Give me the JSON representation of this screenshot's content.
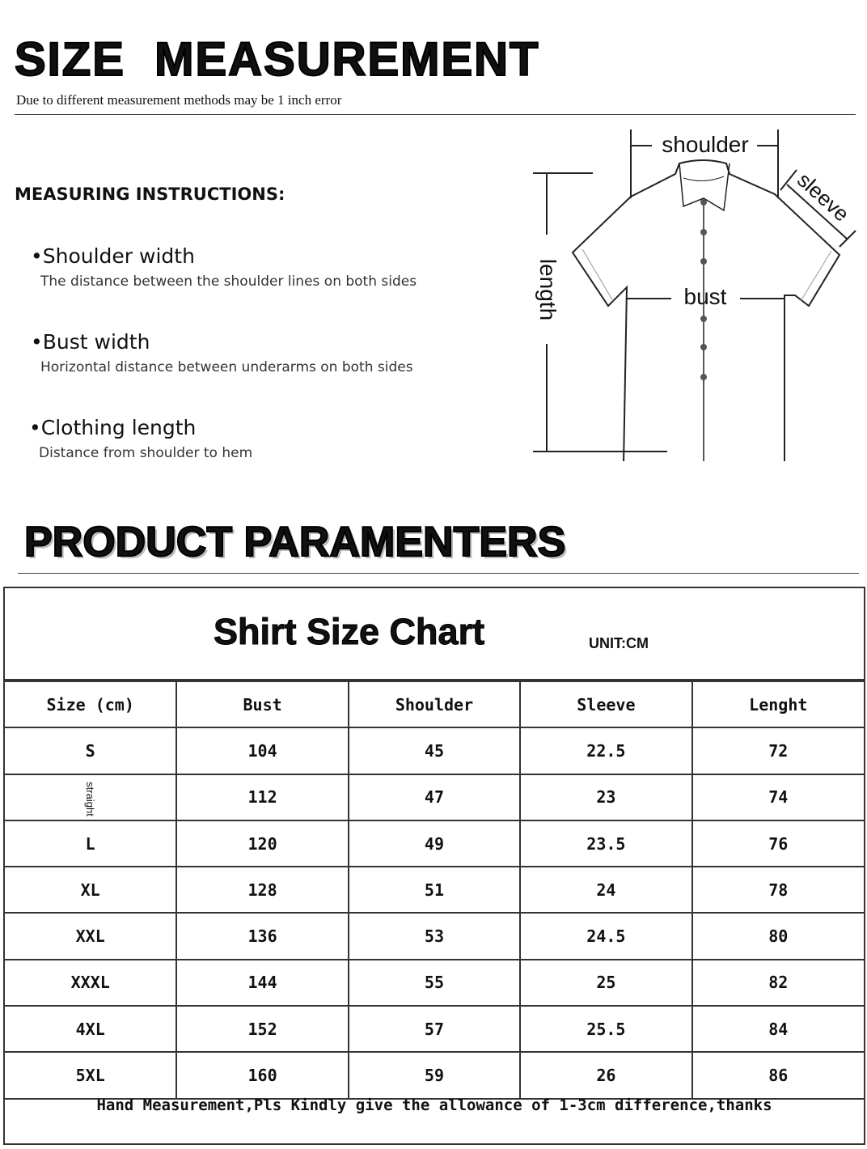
{
  "header": {
    "title": "SIZE  MEASUREMENT",
    "subtitle": "Due to different measurement methods may be 1 inch error"
  },
  "instructions": {
    "heading": "MEASURING INSTRUCTIONS:",
    "items": [
      {
        "title": "•Shoulder width",
        "desc": "The distance between the shoulder lines on both sides"
      },
      {
        "title": "•Bust width",
        "desc": "Horizontal distance between underarms on both sides"
      },
      {
        "title": "•Clothing length",
        "desc": "Distance from shoulder to hem"
      }
    ]
  },
  "diagram": {
    "shoulder": "shoulder",
    "sleeve": "sleeve",
    "length": "length",
    "bust": "bust"
  },
  "section2": {
    "title": "PRODUCT PARAMENTERS"
  },
  "chart": {
    "title": "Shirt Size Chart",
    "unit": "UNIT:CM",
    "headers": [
      "Size (cm)",
      "Bust",
      "Shoulder",
      "Sleeve",
      "Lenght"
    ],
    "rows": [
      [
        "S",
        "104",
        "45",
        "22.5",
        "72"
      ],
      [
        "straight",
        "112",
        "47",
        "23",
        "74"
      ],
      [
        "L",
        "120",
        "49",
        "23.5",
        "76"
      ],
      [
        "XL",
        "128",
        "51",
        "24",
        "78"
      ],
      [
        "XXL",
        "136",
        "53",
        "24.5",
        "80"
      ],
      [
        "XXXL",
        "144",
        "55",
        "25",
        "82"
      ],
      [
        "4XL",
        "152",
        "57",
        "25.5",
        "84"
      ],
      [
        "5XL",
        "160",
        "59",
        "26",
        "86"
      ]
    ],
    "footer": "Hand Measurement,Pls Kindly give the allowance of 1-3cm difference,thanks"
  }
}
